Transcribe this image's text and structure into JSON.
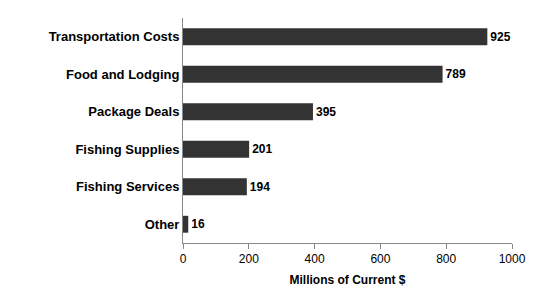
{
  "chart_data": {
    "type": "bar",
    "orientation": "horizontal",
    "categories": [
      "Transportation Costs",
      "Food and Lodging",
      "Package Deals",
      "Fishing Supplies",
      "Fishing Services",
      "Other"
    ],
    "values": [
      925,
      789,
      395,
      201,
      194,
      16
    ],
    "color": "#333333",
    "x_label": "Millions of Current $",
    "xlim": [
      0,
      1000
    ],
    "xticks": [
      0,
      200,
      400,
      600,
      800,
      1000
    ],
    "grid": false,
    "data_labels": true
  }
}
